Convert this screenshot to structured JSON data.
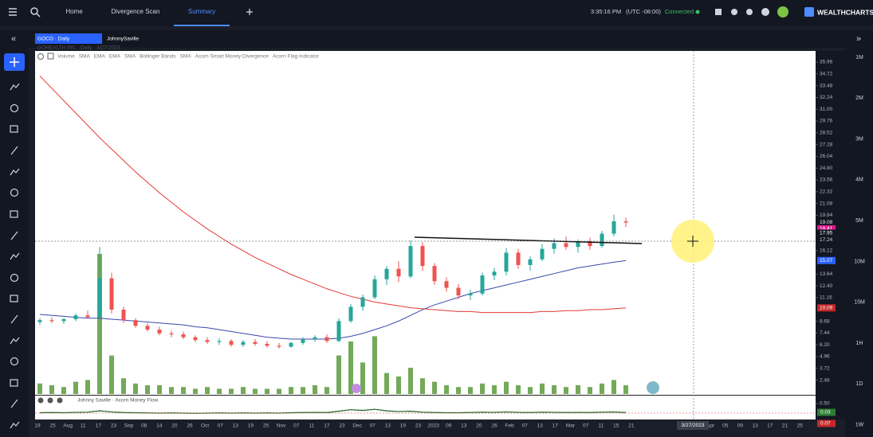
{
  "topbar": {
    "nav": [
      "Home",
      "Divergence Scan",
      "Summary"
    ],
    "clock": "3:35:16 PM",
    "timezone": "(UTC -08:00)",
    "status": "Connected",
    "brand": "WEALTHCHARTS"
  },
  "tabs": [
    "GOCO · Daily",
    "JohnnySaville"
  ],
  "chart": {
    "title": "GOHEALTH INC · Daily · 3/27/2023",
    "indicators": [
      "Volume",
      "SMA",
      "EMA",
      "EMA",
      "SMA",
      "Bollinger Bands",
      "SMA",
      "Acorn Smart Money Divergence",
      "Acorn Flag Indicator"
    ],
    "candles": [
      [
        8.6,
        9.0,
        8.3,
        8.8
      ],
      [
        8.8,
        9.1,
        8.5,
        8.7
      ],
      [
        8.7,
        9.0,
        8.4,
        8.9
      ],
      [
        8.9,
        9.5,
        8.7,
        9.3
      ],
      [
        9.3,
        9.8,
        9.0,
        9.1
      ],
      [
        9.1,
        16.5,
        9.0,
        13.2
      ],
      [
        13.2,
        13.8,
        9.5,
        9.9
      ],
      [
        9.9,
        10.2,
        8.5,
        8.8
      ],
      [
        8.8,
        9.0,
        8.0,
        8.2
      ],
      [
        8.2,
        8.5,
        7.6,
        7.8
      ],
      [
        7.8,
        8.1,
        7.2,
        7.4
      ],
      [
        7.4,
        7.7,
        7.0,
        7.3
      ],
      [
        7.3,
        7.6,
        6.8,
        7.0
      ],
      [
        7.0,
        7.2,
        6.5,
        6.7
      ],
      [
        6.7,
        7.0,
        6.3,
        6.5
      ],
      [
        6.5,
        6.9,
        6.2,
        6.6
      ],
      [
        6.6,
        6.8,
        6.0,
        6.2
      ],
      [
        6.2,
        6.7,
        6.0,
        6.5
      ],
      [
        6.5,
        6.8,
        6.1,
        6.3
      ],
      [
        6.3,
        6.6,
        5.9,
        6.1
      ],
      [
        6.1,
        6.4,
        5.8,
        6.0
      ],
      [
        6.0,
        6.5,
        5.9,
        6.4
      ],
      [
        6.4,
        7.0,
        6.2,
        6.8
      ],
      [
        6.8,
        7.2,
        6.5,
        7.0
      ],
      [
        7.0,
        7.3,
        6.4,
        6.6
      ],
      [
        6.6,
        9.0,
        6.5,
        8.7
      ],
      [
        8.7,
        10.5,
        8.5,
        10.2
      ],
      [
        10.2,
        11.5,
        9.8,
        11.2
      ],
      [
        11.2,
        13.5,
        11.0,
        13.1
      ],
      [
        13.1,
        14.5,
        12.5,
        14.2
      ],
      [
        14.2,
        15.0,
        12.8,
        13.4
      ],
      [
        13.4,
        17.2,
        13.2,
        16.6
      ],
      [
        16.6,
        17.0,
        14.0,
        14.5
      ],
      [
        14.5,
        14.8,
        12.5,
        12.9
      ],
      [
        12.9,
        13.3,
        11.8,
        12.2
      ],
      [
        12.2,
        12.6,
        11.0,
        11.4
      ],
      [
        11.4,
        12.0,
        10.9,
        11.6
      ],
      [
        11.6,
        13.8,
        11.4,
        13.5
      ],
      [
        13.5,
        14.3,
        13.0,
        13.9
      ],
      [
        13.9,
        16.4,
        13.5,
        15.9
      ],
      [
        15.9,
        16.3,
        14.2,
        14.6
      ],
      [
        14.6,
        15.5,
        14.0,
        15.2
      ],
      [
        15.2,
        16.8,
        15.0,
        16.3
      ],
      [
        16.3,
        17.4,
        15.8,
        16.9
      ],
      [
        16.9,
        17.6,
        16.2,
        16.5
      ],
      [
        16.5,
        17.3,
        15.9,
        17.1
      ],
      [
        17.1,
        17.5,
        16.2,
        16.6
      ],
      [
        16.6,
        18.2,
        16.4,
        17.9
      ],
      [
        17.9,
        19.9,
        17.6,
        19.2
      ],
      [
        19.2,
        19.6,
        18.6,
        19.08
      ]
    ],
    "volume": [
      0.6,
      0.5,
      0.4,
      0.7,
      0.8,
      8.0,
      2.2,
      0.9,
      0.6,
      0.5,
      0.5,
      0.4,
      0.4,
      0.3,
      0.4,
      0.3,
      0.3,
      0.4,
      0.3,
      0.3,
      0.3,
      0.4,
      0.4,
      0.5,
      0.4,
      2.2,
      3.0,
      1.8,
      3.3,
      1.2,
      1.0,
      1.5,
      0.9,
      0.7,
      0.5,
      0.4,
      0.4,
      0.6,
      0.5,
      0.7,
      0.5,
      0.4,
      0.6,
      0.5,
      0.4,
      0.5,
      0.4,
      0.6,
      0.8,
      0.5
    ],
    "sma_red": [
      34.5,
      33.2,
      31.9,
      30.6,
      29.3,
      28.0,
      26.8,
      25.6,
      24.4,
      23.3,
      22.2,
      21.2,
      20.2,
      19.3,
      18.4,
      17.6,
      16.8,
      16.1,
      15.4,
      14.8,
      14.2,
      13.6,
      13.1,
      12.6,
      12.1,
      11.7,
      11.3,
      11.0,
      10.7,
      10.5,
      10.3,
      10.1,
      10.0,
      9.9,
      9.8,
      9.7,
      9.7,
      9.6,
      9.6,
      9.6,
      9.6,
      9.6,
      9.7,
      9.7,
      9.8,
      9.8,
      9.9,
      9.9,
      10.0,
      10.09
    ],
    "sma_blue": [
      9.4,
      9.3,
      9.2,
      9.1,
      9.0,
      9.0,
      8.9,
      8.8,
      8.7,
      8.6,
      8.5,
      8.4,
      8.3,
      8.1,
      8.0,
      7.8,
      7.6,
      7.4,
      7.2,
      7.0,
      6.9,
      6.8,
      6.8,
      6.8,
      6.8,
      6.9,
      7.1,
      7.4,
      7.8,
      8.2,
      8.7,
      9.3,
      9.9,
      10.4,
      10.8,
      11.2,
      11.6,
      11.9,
      12.2,
      12.5,
      12.8,
      13.1,
      13.4,
      13.7,
      14.0,
      14.3,
      14.5,
      14.7,
      14.9,
      15.07
    ],
    "money_flow": [
      0.02,
      0.03,
      0.02,
      0.04,
      0.05,
      0.12,
      0.06,
      0.03,
      0.02,
      0.01,
      0.0,
      0.01,
      0.0,
      -0.01,
      0.0,
      0.01,
      0.0,
      0.01,
      0.0,
      0.01,
      0.0,
      0.02,
      0.03,
      0.04,
      0.03,
      0.1,
      0.18,
      0.14,
      0.2,
      0.12,
      0.08,
      0.1,
      0.05,
      0.03,
      0.02,
      0.02,
      0.03,
      0.05,
      0.04,
      0.06,
      0.04,
      0.03,
      0.05,
      0.04,
      0.03,
      0.04,
      0.03,
      0.05,
      0.06,
      0.03
    ],
    "price_ticks": [
      35.96,
      34.72,
      33.48,
      32.24,
      {
        "value": 31,
        "label": "31.00"
      },
      29.76,
      28.52,
      27.28,
      26.04,
      {
        "value": 24.8,
        "label": "24.80"
      },
      23.56,
      22.32,
      21.08,
      19.84,
      16.12,
      13.64,
      {
        "value": 12.4,
        "label": "12.40"
      },
      11.16,
      8.68,
      7.44,
      {
        "value": 6.2,
        "label": "6.20"
      },
      4.96,
      3.72,
      2.48
    ],
    "price_markers": [
      {
        "value": 19.08,
        "color": "#e8e8e8"
      },
      {
        "value": 18.41,
        "color": "#d81b8a"
      },
      {
        "value": 17.95,
        "color": "#ffffff"
      },
      {
        "value": 17.24,
        "color": "#d6d6d6"
      },
      {
        "value": 15.07,
        "color": "#2962ff"
      },
      {
        "value": 10.09,
        "color": "#c62828"
      }
    ],
    "sub_title": "Johnny Saville · Acorn Money Flow",
    "sub_ticks": [
      {
        "value": 0.5,
        "label": "0.50"
      }
    ],
    "sub_markers": [
      {
        "value": 0.03,
        "color": "#2e7d32"
      },
      {
        "value": 0.07,
        "color": "#c62828"
      }
    ],
    "x_labels": [
      "19",
      "25",
      "Aug",
      "11",
      "17",
      "23",
      "Sep",
      "08",
      "14",
      "20",
      "26",
      "Oct",
      "07",
      "13",
      "19",
      "25",
      "Nov",
      "07",
      "11",
      "17",
      "23",
      "Dec",
      "07",
      "13",
      "19",
      "23",
      "2023",
      "09",
      "13",
      "20",
      "26",
      "Feb",
      "07",
      "13",
      "17",
      "Mar",
      "07",
      "11",
      "15",
      "21",
      "Apr",
      "05",
      "09",
      "13",
      "17",
      "21",
      "25"
    ],
    "cursor_date": "3/27/2023",
    "timeframes": [
      "1M",
      "2M",
      "3M",
      "4M",
      "5M",
      "10M",
      "15M",
      "1H",
      "1D",
      "1W"
    ]
  }
}
